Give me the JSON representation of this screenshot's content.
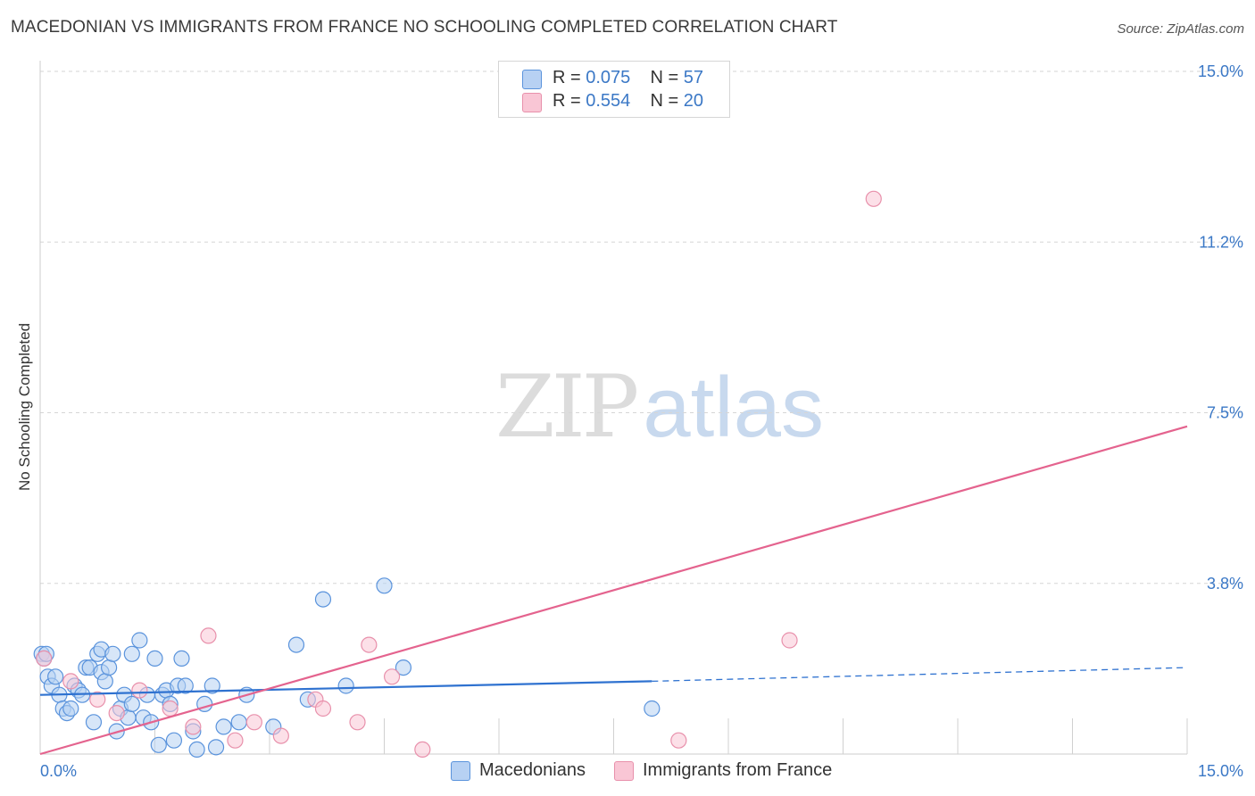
{
  "title": "MACEDONIAN VS IMMIGRANTS FROM FRANCE NO SCHOOLING COMPLETED CORRELATION CHART",
  "source": "Source: ZipAtlas.com",
  "watermark": {
    "zip": "ZIP",
    "atlas": "atlas"
  },
  "legend": {
    "r_label": "R =",
    "n_label": "N =",
    "rows": [
      {
        "r": "0.075",
        "n": "57"
      },
      {
        "r": "0.554",
        "n": "20"
      }
    ]
  },
  "colors": {
    "blue_fill": "#b7d1f3",
    "blue_stroke": "#5a93dc",
    "blue_line": "#2f72d0",
    "pink_fill": "#f9c6d5",
    "pink_stroke": "#e890ab",
    "pink_line": "#e4638e",
    "tick_text": "#3b78c6",
    "grid": "#d6d6d6"
  },
  "chart_data": {
    "type": "scatter",
    "title": "MACEDONIAN VS IMMIGRANTS FROM FRANCE NO SCHOOLING COMPLETED CORRELATION CHART",
    "xlabel": "",
    "ylabel": "No Schooling Completed",
    "xlim": [
      0,
      15
    ],
    "ylim": [
      0,
      15
    ],
    "x_tick_labels": [
      "0.0%",
      "15.0%"
    ],
    "y_ticks": [
      3.75,
      7.5,
      11.25,
      15.0
    ],
    "y_tick_labels": [
      "3.8%",
      "7.5%",
      "11.2%",
      "15.0%"
    ],
    "grid": true,
    "legend_position": "bottom",
    "series": [
      {
        "name": "Macedonians",
        "r": 0.075,
        "n": 57,
        "trend": {
          "x0": 0.0,
          "y0": 1.3,
          "x1": 8.0,
          "y1": 1.6,
          "dashed_to_x": 15.0,
          "dashed_to_y": 1.9
        },
        "points": [
          [
            0.02,
            2.2
          ],
          [
            0.05,
            2.1
          ],
          [
            0.1,
            1.7
          ],
          [
            0.15,
            1.5
          ],
          [
            0.2,
            1.7
          ],
          [
            0.25,
            1.3
          ],
          [
            0.3,
            1.0
          ],
          [
            0.35,
            0.9
          ],
          [
            0.4,
            1.0
          ],
          [
            0.45,
            1.5
          ],
          [
            0.5,
            1.4
          ],
          [
            0.55,
            1.3
          ],
          [
            0.6,
            1.9
          ],
          [
            0.65,
            1.9
          ],
          [
            0.7,
            0.7
          ],
          [
            0.75,
            2.2
          ],
          [
            0.8,
            1.8
          ],
          [
            0.8,
            2.3
          ],
          [
            0.85,
            1.6
          ],
          [
            0.9,
            1.9
          ],
          [
            0.95,
            2.2
          ],
          [
            1.0,
            0.5
          ],
          [
            1.05,
            1.0
          ],
          [
            1.1,
            1.3
          ],
          [
            1.2,
            2.2
          ],
          [
            1.15,
            0.8
          ],
          [
            1.2,
            1.1
          ],
          [
            1.3,
            2.5
          ],
          [
            1.35,
            0.8
          ],
          [
            1.4,
            1.3
          ],
          [
            1.45,
            0.7
          ],
          [
            1.5,
            2.1
          ],
          [
            1.55,
            0.2
          ],
          [
            1.6,
            1.3
          ],
          [
            1.65,
            1.4
          ],
          [
            1.7,
            1.1
          ],
          [
            1.75,
            0.3
          ],
          [
            1.8,
            1.5
          ],
          [
            1.85,
            2.1
          ],
          [
            1.9,
            1.5
          ],
          [
            2.0,
            0.5
          ],
          [
            2.05,
            0.1
          ],
          [
            2.15,
            1.1
          ],
          [
            2.25,
            1.5
          ],
          [
            2.3,
            0.15
          ],
          [
            2.4,
            0.6
          ],
          [
            2.6,
            0.7
          ],
          [
            2.7,
            1.3
          ],
          [
            3.05,
            0.6
          ],
          [
            3.35,
            2.4
          ],
          [
            3.5,
            1.2
          ],
          [
            3.7,
            3.4
          ],
          [
            4.0,
            1.5
          ],
          [
            4.5,
            3.7
          ],
          [
            4.75,
            1.9
          ],
          [
            8.0,
            1.0
          ],
          [
            0.08,
            2.2
          ]
        ]
      },
      {
        "name": "Immigrants from France",
        "r": 0.554,
        "n": 20,
        "trend": {
          "x0": 0.0,
          "y0": 0.0,
          "x1": 15.0,
          "y1": 7.2
        },
        "points": [
          [
            0.05,
            2.1
          ],
          [
            0.4,
            1.6
          ],
          [
            0.75,
            1.2
          ],
          [
            1.0,
            0.9
          ],
          [
            1.3,
            1.4
          ],
          [
            1.7,
            1.0
          ],
          [
            2.0,
            0.6
          ],
          [
            2.2,
            2.6
          ],
          [
            2.55,
            0.3
          ],
          [
            2.8,
            0.7
          ],
          [
            3.15,
            0.4
          ],
          [
            3.6,
            1.2
          ],
          [
            3.7,
            1.0
          ],
          [
            4.15,
            0.7
          ],
          [
            4.3,
            2.4
          ],
          [
            4.6,
            1.7
          ],
          [
            5.0,
            0.1
          ],
          [
            8.35,
            0.3
          ],
          [
            9.8,
            2.5
          ],
          [
            10.9,
            12.2
          ]
        ]
      }
    ]
  }
}
